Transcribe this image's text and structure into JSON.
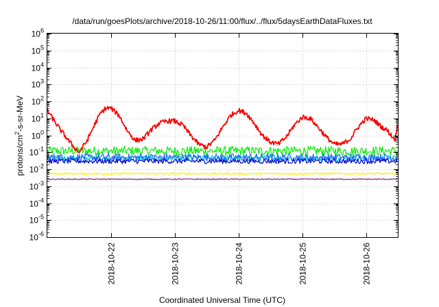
{
  "chart_data": {
    "type": "line",
    "title": "/data/run/goesPlots/archive/2018-10-26/11:00/flux/../flux/5daysEarthDataFluxes.txt",
    "xlabel": "Coordinated Universal Time (UTC)",
    "ylabel": "protons/cm2-s-sr-MeV",
    "yscale": "log",
    "ylim_exp": [
      -6,
      6
    ],
    "y_ticks": [
      {
        "base": "10",
        "exp": "-6"
      },
      {
        "base": "10",
        "exp": "-5"
      },
      {
        "base": "10",
        "exp": "-4"
      },
      {
        "base": "10",
        "exp": "-3"
      },
      {
        "base": "10",
        "exp": "-2"
      },
      {
        "base": "10",
        "exp": "-1"
      },
      {
        "base": "10",
        "exp": "0"
      },
      {
        "base": "10",
        "exp": "1"
      },
      {
        "base": "10",
        "exp": "2"
      },
      {
        "base": "10",
        "exp": "3"
      },
      {
        "base": "10",
        "exp": "4"
      },
      {
        "base": "10",
        "exp": "5"
      },
      {
        "base": "10",
        "exp": "6"
      }
    ],
    "xlim": [
      "2018-10-21",
      "2018-10-26T12:00"
    ],
    "x_ticks": [
      "2018-10-22",
      "2018-10-23",
      "2018-10-24",
      "2018-10-25",
      "2018-10-26"
    ],
    "grid": true,
    "series": [
      {
        "color": "#ff0000",
        "x": [
          "2018-10-21T00:00",
          "2018-10-21T02:00",
          "2018-10-21T05:00",
          "2018-10-21T08:00",
          "2018-10-21T10:00",
          "2018-10-21T12:00",
          "2018-10-21T15:00",
          "2018-10-21T18:00",
          "2018-10-21T20:00",
          "2018-10-21T22:00",
          "2018-10-22T00:00",
          "2018-10-22T03:00",
          "2018-10-22T06:00",
          "2018-10-22T09:00",
          "2018-10-22T12:00",
          "2018-10-22T15:00",
          "2018-10-22T18:00",
          "2018-10-22T21:00",
          "2018-10-23T00:00",
          "2018-10-23T03:00",
          "2018-10-23T06:00",
          "2018-10-23T09:00",
          "2018-10-23T12:00",
          "2018-10-23T15:00",
          "2018-10-23T18:00",
          "2018-10-23T21:00",
          "2018-10-24T00:00",
          "2018-10-24T03:00",
          "2018-10-24T06:00",
          "2018-10-24T09:00",
          "2018-10-24T12:00",
          "2018-10-24T15:00",
          "2018-10-24T18:00",
          "2018-10-24T21:00",
          "2018-10-25T00:00",
          "2018-10-25T03:00",
          "2018-10-25T06:00",
          "2018-10-25T09:00",
          "2018-10-25T12:00",
          "2018-10-25T15:00",
          "2018-10-25T18:00",
          "2018-10-25T21:00",
          "2018-10-26T00:00",
          "2018-10-26T03:00",
          "2018-10-26T06:00",
          "2018-10-26T08:00",
          "2018-10-26T10:00",
          "2018-10-26T11:00",
          "2018-10-26T12:00"
        ],
        "values": [
          30,
          10,
          2,
          0.5,
          0.2,
          0.1,
          0.5,
          5,
          20,
          40,
          40,
          15,
          2,
          0.5,
          0.6,
          2,
          5,
          7,
          7,
          4,
          1,
          0.3,
          0.2,
          0.5,
          3,
          15,
          30,
          20,
          5,
          1,
          0.4,
          0.3,
          0.8,
          4,
          12,
          10,
          3,
          0.8,
          0.3,
          0.3,
          0.6,
          3,
          10,
          8,
          3,
          2,
          0.8,
          0.6,
          5
        ]
      },
      {
        "color": "#00ee00",
        "level": 0.12,
        "spread": 0.55,
        "x_range": [
          "2018-10-21",
          "2018-10-26T12:00"
        ]
      },
      {
        "color": "#00c8c8",
        "level": 0.045,
        "spread": 0.35,
        "x_range": [
          "2018-10-21",
          "2018-10-26T12:00"
        ]
      },
      {
        "color": "#1e64ff",
        "level": 0.05,
        "spread": 0.45,
        "x_range": [
          "2018-10-21",
          "2018-10-26T12:00"
        ]
      },
      {
        "color": "#0000cc",
        "level": 0.03,
        "spread": 0.3,
        "x_range": [
          "2018-10-21",
          "2018-10-26T12:00"
        ]
      },
      {
        "color": "#ffee00",
        "level": 0.0055,
        "spread": 0.12,
        "x_range": [
          "2018-10-21",
          "2018-10-26T12:00"
        ]
      },
      {
        "color": "#7a2a80",
        "level": 0.0026,
        "spread": 0.06,
        "x_range": [
          "2018-10-21",
          "2018-10-26T12:00"
        ]
      }
    ]
  }
}
